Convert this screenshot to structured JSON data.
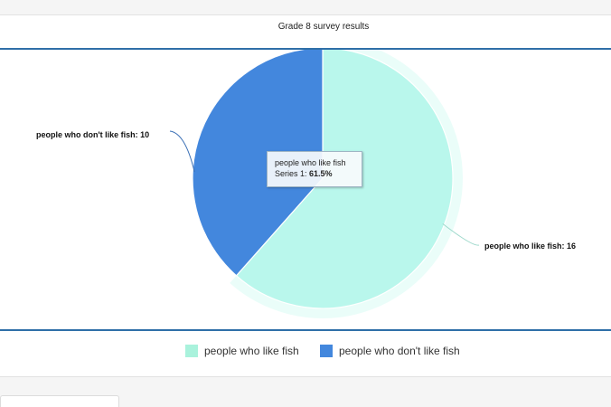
{
  "chart_data": {
    "type": "pie",
    "title": "Grade 8 survey results",
    "categories": [
      "people who like fish",
      "people who don't like fish"
    ],
    "series": [
      {
        "name": "Series 1",
        "values": [
          16,
          10
        ]
      }
    ],
    "colors": [
      "#b9f7ec",
      "#4387dd"
    ],
    "data_labels": [
      "people who like fish: 16",
      "people who don't like fish: 10"
    ],
    "legend": "bottom",
    "tooltip": {
      "category": "people who like fish",
      "series_prefix": "Series 1: ",
      "value": "61.5%"
    }
  },
  "legend_items": [
    {
      "label": "people who like fish",
      "color": "#a9f2dc"
    },
    {
      "label": "people who don't like fish",
      "color": "#4387dd"
    }
  ]
}
